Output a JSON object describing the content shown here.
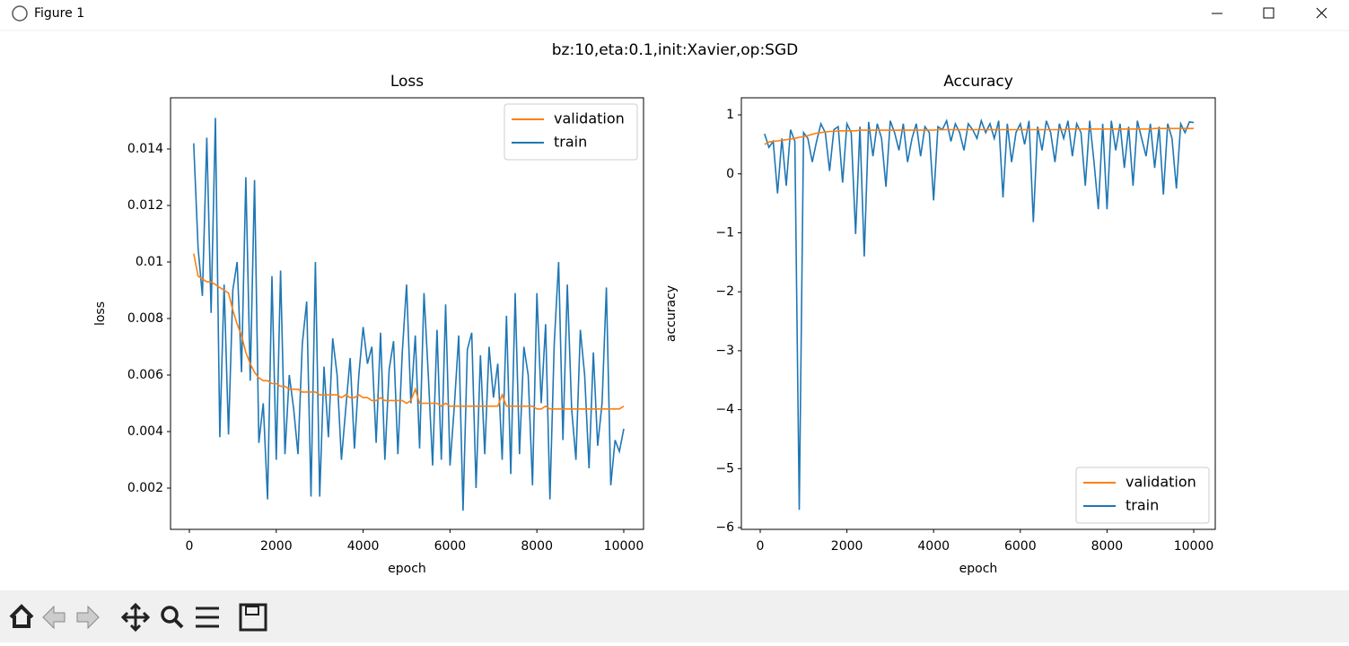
{
  "window_title": "Figure 1",
  "suptitle": "bz:10,eta:0.1,init:Xavier,op:SGD",
  "chart_data": [
    {
      "type": "line",
      "title": "Loss",
      "xlabel": "epoch",
      "ylabel": "loss",
      "legend": "upper right",
      "xlim": [
        -434,
        10455
      ],
      "ylim": [
        0.00054,
        0.01581
      ],
      "xticks": [
        0,
        2000,
        4000,
        6000,
        8000,
        10000
      ],
      "yticks": [
        0.002,
        0.004,
        0.006,
        0.008,
        0.01,
        0.012,
        0.014
      ],
      "x": [
        100,
        200,
        300,
        400,
        500,
        600,
        700,
        800,
        900,
        1000,
        1100,
        1200,
        1300,
        1400,
        1500,
        1600,
        1700,
        1800,
        1900,
        2000,
        2100,
        2200,
        2300,
        2400,
        2500,
        2600,
        2700,
        2800,
        2900,
        3000,
        3100,
        3200,
        3300,
        3400,
        3500,
        3600,
        3700,
        3800,
        3900,
        4000,
        4100,
        4200,
        4300,
        4400,
        4500,
        4600,
        4700,
        4800,
        4900,
        5000,
        5100,
        5200,
        5300,
        5400,
        5500,
        5600,
        5700,
        5800,
        5900,
        6000,
        6100,
        6200,
        6300,
        6400,
        6500,
        6600,
        6700,
        6800,
        6900,
        7000,
        7100,
        7200,
        7300,
        7400,
        7500,
        7600,
        7700,
        7800,
        7900,
        8000,
        8100,
        8200,
        8300,
        8400,
        8500,
        8600,
        8700,
        8800,
        8900,
        9000,
        9100,
        9200,
        9300,
        9400,
        9500,
        9600,
        9700,
        9800,
        9900,
        10000
      ],
      "series": [
        {
          "name": "validation",
          "color": "#ff7f0e",
          "values": [
            0.0103,
            0.0095,
            0.0094,
            0.0093,
            0.0093,
            0.0092,
            0.0091,
            0.009,
            0.0089,
            0.0083,
            0.0078,
            0.0074,
            0.0068,
            0.0064,
            0.0061,
            0.0059,
            0.0058,
            0.0058,
            0.0057,
            0.0057,
            0.0056,
            0.0056,
            0.0055,
            0.0055,
            0.0055,
            0.0054,
            0.0054,
            0.0054,
            0.0054,
            0.0053,
            0.0053,
            0.0053,
            0.0053,
            0.0053,
            0.0052,
            0.0053,
            0.0052,
            0.0052,
            0.0053,
            0.0052,
            0.0052,
            0.0051,
            0.0051,
            0.0052,
            0.0051,
            0.0051,
            0.0051,
            0.0051,
            0.0051,
            0.005,
            0.0051,
            0.0055,
            0.005,
            0.005,
            0.005,
            0.005,
            0.005,
            0.0049,
            0.005,
            0.0049,
            0.0049,
            0.0049,
            0.0049,
            0.0049,
            0.0049,
            0.0049,
            0.0049,
            0.0049,
            0.0049,
            0.0049,
            0.0049,
            0.0053,
            0.0049,
            0.0049,
            0.0049,
            0.0049,
            0.0049,
            0.0049,
            0.0049,
            0.0048,
            0.0048,
            0.0049,
            0.0048,
            0.0048,
            0.0048,
            0.0048,
            0.0048,
            0.0048,
            0.0048,
            0.0048,
            0.0048,
            0.0048,
            0.0048,
            0.0048,
            0.0048,
            0.0048,
            0.0048,
            0.0048,
            0.0048,
            0.0049
          ]
        },
        {
          "name": "train",
          "color": "#1f77b4",
          "values": [
            0.0142,
            0.0105,
            0.0088,
            0.0144,
            0.0082,
            0.0151,
            0.0038,
            0.0092,
            0.0039,
            0.009,
            0.01,
            0.0061,
            0.013,
            0.0058,
            0.0129,
            0.0036,
            0.005,
            0.0016,
            0.0095,
            0.003,
            0.0097,
            0.0032,
            0.006,
            0.0048,
            0.0032,
            0.0071,
            0.0086,
            0.0017,
            0.01,
            0.0017,
            0.0063,
            0.0038,
            0.0073,
            0.006,
            0.003,
            0.0048,
            0.0066,
            0.0034,
            0.006,
            0.0077,
            0.0064,
            0.007,
            0.0036,
            0.0075,
            0.003,
            0.0062,
            0.0072,
            0.0032,
            0.0068,
            0.0092,
            0.005,
            0.0074,
            0.0034,
            0.0089,
            0.006,
            0.0028,
            0.0076,
            0.003,
            0.0085,
            0.0028,
            0.0049,
            0.0074,
            0.0012,
            0.0069,
            0.0075,
            0.002,
            0.0067,
            0.0032,
            0.007,
            0.0052,
            0.0064,
            0.003,
            0.0081,
            0.0025,
            0.0089,
            0.0032,
            0.007,
            0.006,
            0.0021,
            0.0089,
            0.005,
            0.0078,
            0.0016,
            0.0071,
            0.01,
            0.0037,
            0.0092,
            0.0048,
            0.003,
            0.0076,
            0.006,
            0.0027,
            0.0068,
            0.0035,
            0.005,
            0.0091,
            0.0021,
            0.0037,
            0.0033,
            0.0041
          ]
        }
      ]
    },
    {
      "type": "line",
      "title": "Accuracy",
      "xlabel": "epoch",
      "ylabel": "accuracy",
      "legend": "lower right",
      "xlim": [
        -435,
        10497
      ],
      "ylim": [
        -6.03,
        1.29
      ],
      "xticks": [
        0,
        2000,
        4000,
        6000,
        8000,
        10000
      ],
      "yticks": [
        {
          "value": -6,
          "label": "−6"
        },
        {
          "value": -5,
          "label": "−5"
        },
        {
          "value": -4,
          "label": "−4"
        },
        {
          "value": -3,
          "label": "−3"
        },
        {
          "value": -2,
          "label": "−2"
        },
        {
          "value": -1,
          "label": "−1"
        },
        0,
        1
      ],
      "x": [
        100,
        200,
        300,
        400,
        500,
        600,
        700,
        800,
        900,
        1000,
        1100,
        1200,
        1300,
        1400,
        1500,
        1600,
        1700,
        1800,
        1900,
        2000,
        2100,
        2200,
        2300,
        2400,
        2500,
        2600,
        2700,
        2800,
        2900,
        3000,
        3100,
        3200,
        3300,
        3400,
        3500,
        3600,
        3700,
        3800,
        3900,
        4000,
        4100,
        4200,
        4300,
        4400,
        4500,
        4600,
        4700,
        4800,
        4900,
        5000,
        5100,
        5200,
        5300,
        5400,
        5500,
        5600,
        5700,
        5800,
        5900,
        6000,
        6100,
        6200,
        6300,
        6400,
        6500,
        6600,
        6700,
        6800,
        6900,
        7000,
        7100,
        7200,
        7300,
        7400,
        7500,
        7600,
        7700,
        7800,
        7900,
        8000,
        8100,
        8200,
        8300,
        8400,
        8500,
        8600,
        8700,
        8800,
        8900,
        9000,
        9100,
        9200,
        9300,
        9400,
        9500,
        9600,
        9700,
        9800,
        9900,
        10000
      ],
      "series": [
        {
          "name": "validation",
          "color": "#ff7f0e",
          "values": [
            0.5,
            0.54,
            0.55,
            0.56,
            0.57,
            0.58,
            0.59,
            0.6,
            0.62,
            0.63,
            0.65,
            0.67,
            0.69,
            0.7,
            0.71,
            0.72,
            0.72,
            0.73,
            0.73,
            0.73,
            0.73,
            0.73,
            0.74,
            0.74,
            0.74,
            0.74,
            0.74,
            0.74,
            0.74,
            0.74,
            0.74,
            0.74,
            0.74,
            0.74,
            0.74,
            0.74,
            0.74,
            0.74,
            0.74,
            0.74,
            0.75,
            0.75,
            0.75,
            0.75,
            0.75,
            0.75,
            0.75,
            0.75,
            0.75,
            0.75,
            0.75,
            0.75,
            0.75,
            0.75,
            0.75,
            0.75,
            0.75,
            0.75,
            0.75,
            0.75,
            0.75,
            0.75,
            0.75,
            0.75,
            0.75,
            0.75,
            0.75,
            0.75,
            0.75,
            0.75,
            0.76,
            0.76,
            0.76,
            0.76,
            0.76,
            0.76,
            0.76,
            0.76,
            0.76,
            0.76,
            0.76,
            0.76,
            0.76,
            0.76,
            0.76,
            0.76,
            0.76,
            0.76,
            0.76,
            0.76,
            0.77,
            0.77,
            0.77,
            0.77,
            0.77,
            0.77,
            0.77,
            0.77,
            0.77,
            0.77
          ]
        },
        {
          "name": "train",
          "color": "#1f77b4",
          "values": [
            0.68,
            0.45,
            0.55,
            -0.33,
            0.6,
            -0.2,
            0.75,
            0.55,
            -5.7,
            0.7,
            0.6,
            0.2,
            0.55,
            0.85,
            0.7,
            0.05,
            0.75,
            0.8,
            -0.15,
            0.85,
            0.7,
            -1.02,
            0.8,
            -1.4,
            0.88,
            0.3,
            0.85,
            0.6,
            -0.22,
            0.9,
            0.7,
            0.4,
            0.85,
            0.2,
            0.6,
            0.85,
            0.3,
            0.8,
            0.7,
            -0.45,
            0.8,
            0.75,
            0.9,
            0.55,
            0.85,
            0.7,
            0.4,
            0.85,
            0.75,
            0.6,
            0.9,
            0.7,
            0.85,
            0.6,
            0.9,
            -0.4,
            0.85,
            0.2,
            0.7,
            0.85,
            0.5,
            0.9,
            -0.82,
            0.8,
            0.4,
            0.9,
            0.7,
            0.2,
            0.85,
            0.6,
            0.9,
            0.3,
            0.85,
            0.7,
            -0.2,
            0.9,
            0.2,
            -0.6,
            0.85,
            -0.6,
            0.9,
            0.4,
            0.85,
            0.1,
            0.8,
            -0.2,
            0.9,
            0.6,
            0.3,
            0.85,
            0.1,
            0.8,
            -0.35,
            0.85,
            0.6,
            -0.25,
            0.85,
            0.7,
            0.88,
            0.87
          ]
        }
      ]
    }
  ]
}
